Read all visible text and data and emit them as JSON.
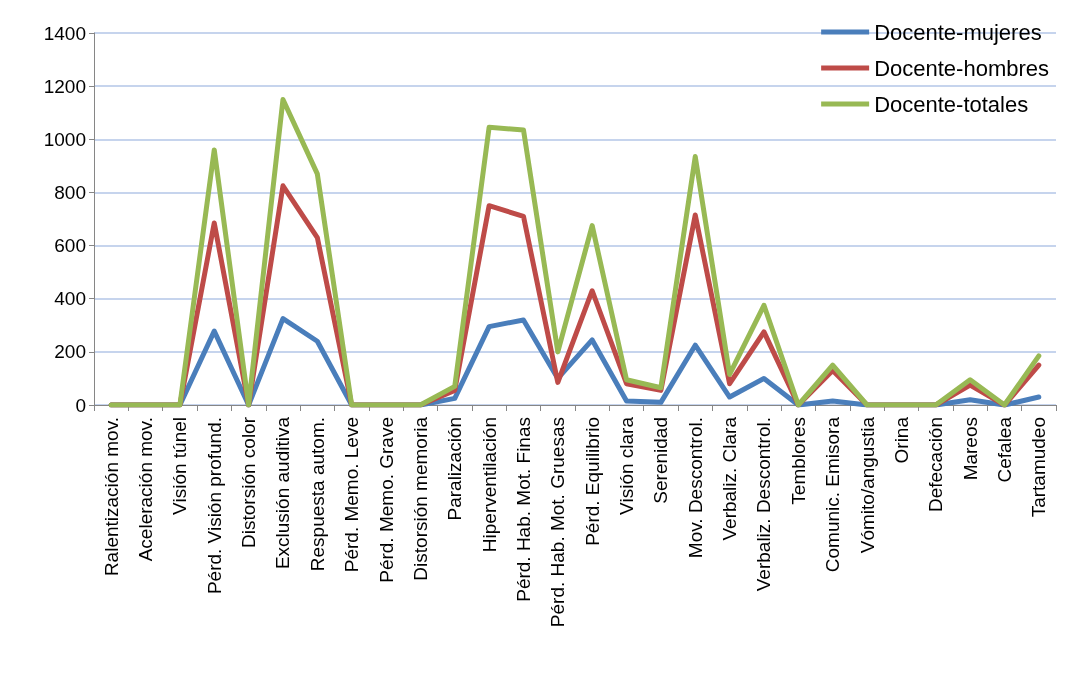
{
  "chart_data": {
    "type": "line",
    "categories": [
      "Ralentización mov.",
      "Aceleración mov.",
      "Visión túnel",
      "Pérd. Visión profund.",
      "Distorsión color",
      "Exclusión auditiva",
      "Respuesta autom.",
      "Pérd. Memo. Leve",
      "Pérd. Memo. Grave",
      "Distorsión memoria",
      "Paralización",
      "Hiperventilación",
      "Pérd. Hab. Mot. Finas",
      "Pérd. Hab. Mot. Gruesas",
      "Pérd. Equilibrio",
      "Visión clara",
      "Serenidad",
      "Mov. Descontrol.",
      "Verbaliz. Clara",
      "Verbaliz. Descontrol.",
      "Temblores",
      "Comunic. Emisora",
      "Vómito/angustia",
      "Orina",
      "Defecación",
      "Mareos",
      "Cefalea",
      "Tartamudeo"
    ],
    "series": [
      {
        "name": "Docente-mujeres",
        "color": "#4a7ebb",
        "values": [
          0,
          0,
          0,
          278,
          0,
          325,
          240,
          0,
          0,
          0,
          25,
          295,
          320,
          100,
          245,
          15,
          10,
          225,
          30,
          100,
          0,
          15,
          0,
          0,
          0,
          20,
          0,
          30
        ]
      },
      {
        "name": "Docente-hombres",
        "color": "#be4b48",
        "values": [
          0,
          0,
          0,
          685,
          0,
          825,
          630,
          0,
          0,
          0,
          55,
          750,
          710,
          85,
          430,
          80,
          55,
          715,
          80,
          275,
          0,
          130,
          0,
          0,
          0,
          75,
          0,
          150
        ]
      },
      {
        "name": "Docente-totales",
        "color": "#98b954",
        "values": [
          0,
          0,
          0,
          960,
          0,
          1150,
          870,
          0,
          0,
          0,
          70,
          1045,
          1035,
          200,
          675,
          95,
          65,
          935,
          115,
          375,
          0,
          150,
          0,
          0,
          0,
          95,
          0,
          185
        ]
      }
    ],
    "ylim": [
      0,
      1400
    ],
    "yticks": [
      0,
      200,
      400,
      600,
      800,
      1000,
      1200,
      1400
    ],
    "grid": "y",
    "legend": "top right",
    "marker": "none",
    "line_style": "solid"
  }
}
